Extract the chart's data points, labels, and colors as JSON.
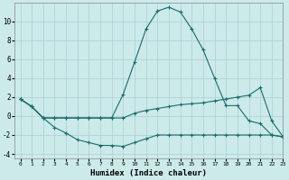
{
  "xlabel": "Humidex (Indice chaleur)",
  "bg_color": "#cceaea",
  "line_color": "#1a6b6b",
  "grid_color": "#aacfcf",
  "xlim": [
    -0.5,
    23
  ],
  "ylim": [
    -4.5,
    12
  ],
  "xticks": [
    0,
    1,
    2,
    3,
    4,
    5,
    6,
    7,
    8,
    9,
    10,
    11,
    12,
    13,
    14,
    15,
    16,
    17,
    18,
    19,
    20,
    21,
    22,
    23
  ],
  "yticks": [
    -4,
    -2,
    0,
    2,
    4,
    6,
    8,
    10
  ],
  "line1_x": [
    0,
    1,
    2,
    3,
    4,
    5,
    6,
    7,
    8,
    9,
    10,
    11,
    12,
    13,
    14,
    15,
    16,
    17,
    18,
    19,
    20,
    21,
    22,
    23
  ],
  "line1_y": [
    1.8,
    1.0,
    -0.2,
    -0.2,
    -0.2,
    -0.2,
    -0.2,
    -0.2,
    -0.2,
    2.3,
    5.7,
    9.2,
    11.1,
    11.5,
    11.0,
    9.2,
    7.0,
    4.0,
    1.1,
    1.1,
    -0.5,
    -0.8,
    -2.0,
    -2.2
  ],
  "line2_x": [
    0,
    1,
    2,
    3,
    4,
    5,
    6,
    7,
    8,
    9,
    10,
    11,
    12,
    13,
    14,
    15,
    16,
    17,
    18,
    19,
    20,
    21,
    22,
    23
  ],
  "line2_y": [
    1.8,
    1.0,
    -0.2,
    -0.2,
    -0.2,
    -0.2,
    -0.2,
    -0.2,
    -0.2,
    -0.2,
    0.3,
    0.6,
    0.8,
    1.0,
    1.2,
    1.3,
    1.4,
    1.6,
    1.8,
    2.0,
    2.2,
    3.0,
    -0.5,
    -2.2
  ],
  "line3_x": [
    0,
    1,
    2,
    3,
    4,
    5,
    6,
    7,
    8,
    9,
    10,
    11,
    12,
    13,
    14,
    15,
    16,
    17,
    18,
    19,
    20,
    21,
    22,
    23
  ],
  "line3_y": [
    1.8,
    1.0,
    -0.2,
    -1.2,
    -1.8,
    -2.5,
    -2.8,
    -3.1,
    -3.1,
    -3.2,
    -2.8,
    -2.4,
    -2.0,
    -2.0,
    -2.0,
    -2.0,
    -2.0,
    -2.0,
    -2.0,
    -2.0,
    -2.0,
    -2.0,
    -2.0,
    -2.2
  ]
}
